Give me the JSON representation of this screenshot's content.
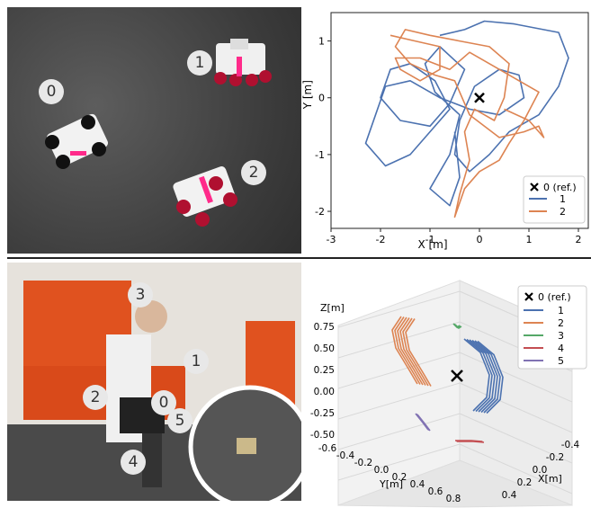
{
  "top_photo": {
    "labels": [
      "0",
      "1",
      "2"
    ]
  },
  "bottom_photo": {
    "labels": [
      "0",
      "1",
      "2",
      "3",
      "4",
      "5"
    ]
  },
  "chart_data": [
    {
      "type": "line",
      "title": "",
      "xlabel": "X [m]",
      "ylabel": "Y [m]",
      "xlim": [
        -3,
        2.2
      ],
      "ylim": [
        -2.3,
        1.5
      ],
      "xticks": [
        "-3",
        "-2",
        "-1",
        "0",
        "1",
        "2"
      ],
      "yticks": [
        "1",
        "0",
        "-1",
        "-2"
      ],
      "legend": {
        "position": "bottom-right",
        "ref_label": "0 (ref.)",
        "entries": [
          "1",
          "2"
        ]
      },
      "reference": {
        "label": "0 (ref.)",
        "x": 0,
        "y": 0
      },
      "series": [
        {
          "name": "1",
          "color": "#4c72b0",
          "points": [
            [
              -0.8,
              1.1
            ],
            [
              -0.3,
              1.2
            ],
            [
              0.1,
              1.35
            ],
            [
              0.7,
              1.3
            ],
            [
              1.6,
              1.15
            ],
            [
              1.8,
              0.7
            ],
            [
              1.6,
              0.2
            ],
            [
              1.2,
              -0.3
            ],
            [
              0.6,
              -0.6
            ],
            [
              0.2,
              -1.0
            ],
            [
              -0.2,
              -1.3
            ],
            [
              -0.5,
              -1.0
            ],
            [
              -0.4,
              -0.4
            ],
            [
              -0.1,
              0.2
            ],
            [
              0.4,
              0.5
            ],
            [
              0.8,
              0.4
            ],
            [
              0.9,
              0.0
            ],
            [
              0.4,
              -0.3
            ],
            [
              -0.2,
              -0.2
            ],
            [
              -0.8,
              0.0
            ],
            [
              -1.4,
              0.3
            ],
            [
              -1.9,
              0.2
            ],
            [
              -2.1,
              -0.3
            ],
            [
              -2.3,
              -0.8
            ],
            [
              -1.9,
              -1.2
            ],
            [
              -1.4,
              -1.0
            ],
            [
              -1.0,
              -0.6
            ],
            [
              -0.6,
              -0.2
            ],
            [
              -0.9,
              0.3
            ],
            [
              -1.4,
              0.6
            ],
            [
              -1.8,
              0.5
            ],
            [
              -2.0,
              0.0
            ],
            [
              -1.6,
              -0.4
            ],
            [
              -1.0,
              -0.5
            ],
            [
              -0.6,
              -0.1
            ],
            [
              -0.3,
              0.5
            ],
            [
              -0.8,
              0.9
            ],
            [
              -1.1,
              0.6
            ],
            [
              -0.9,
              0.1
            ],
            [
              -0.4,
              -0.3
            ],
            [
              -0.6,
              -1.0
            ],
            [
              -1.0,
              -1.6
            ],
            [
              -0.6,
              -1.9
            ],
            [
              -0.4,
              -1.4
            ],
            [
              -0.5,
              -0.6
            ]
          ]
        },
        {
          "name": "2",
          "color": "#dd8452",
          "points": [
            [
              -1.8,
              1.1
            ],
            [
              -1.3,
              1.0
            ],
            [
              -0.8,
              0.9
            ],
            [
              -0.8,
              0.5
            ],
            [
              -1.2,
              0.3
            ],
            [
              -1.6,
              0.5
            ],
            [
              -1.7,
              0.7
            ],
            [
              -1.2,
              0.7
            ],
            [
              -0.6,
              0.5
            ],
            [
              -0.2,
              0.8
            ],
            [
              0.2,
              0.6
            ],
            [
              0.8,
              0.3
            ],
            [
              1.2,
              0.1
            ],
            [
              0.9,
              -0.4
            ],
            [
              0.6,
              -0.8
            ],
            [
              0.4,
              -1.1
            ],
            [
              0.0,
              -1.3
            ],
            [
              -0.3,
              -1.6
            ],
            [
              -0.5,
              -2.1
            ],
            [
              -0.4,
              -1.7
            ],
            [
              -0.2,
              -1.1
            ],
            [
              -0.3,
              -0.6
            ],
            [
              -0.1,
              -0.2
            ],
            [
              0.3,
              -0.4
            ],
            [
              0.5,
              0.0
            ],
            [
              0.6,
              0.6
            ],
            [
              0.2,
              0.9
            ],
            [
              -0.4,
              1.0
            ],
            [
              -1.0,
              1.1
            ],
            [
              -1.5,
              1.2
            ],
            [
              -1.7,
              0.9
            ],
            [
              -1.4,
              0.6
            ],
            [
              -0.9,
              0.4
            ],
            [
              -0.5,
              0.3
            ],
            [
              -0.2,
              -0.3
            ],
            [
              0.4,
              -0.7
            ],
            [
              0.9,
              -0.6
            ],
            [
              1.2,
              -0.5
            ],
            [
              1.3,
              -0.7
            ],
            [
              1.0,
              -0.4
            ],
            [
              0.5,
              -0.2
            ]
          ]
        }
      ]
    },
    {
      "type": "line",
      "title": "",
      "xlabel": "X[m]",
      "ylabel": "Y[m]",
      "zlabel": "Z[m]",
      "zticks": [
        "0.75",
        "0.50",
        "0.25",
        "0.00",
        "-0.25",
        "-0.50"
      ],
      "yticks": [
        "-0.6",
        "-0.4",
        "-0.2",
        "0.0",
        "0.2",
        "0.4",
        "0.6",
        "0.8"
      ],
      "xticks": [
        "-0.4",
        "-0.2",
        "0.0",
        "0.2",
        "0.4"
      ],
      "legend": {
        "position": "top-right",
        "ref_label": "0 (ref.)",
        "entries": [
          "1",
          "2",
          "3",
          "4",
          "5"
        ]
      },
      "series": [
        {
          "name": "1",
          "color": "#4c72b0"
        },
        {
          "name": "2",
          "color": "#dd8452"
        },
        {
          "name": "3",
          "color": "#55a868"
        },
        {
          "name": "4",
          "color": "#c44e52"
        },
        {
          "name": "5",
          "color": "#8172b3"
        }
      ]
    }
  ]
}
